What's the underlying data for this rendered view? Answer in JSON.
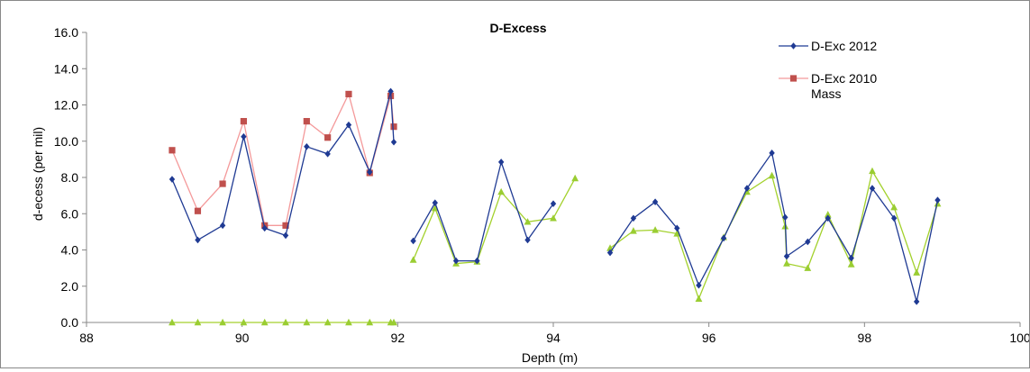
{
  "chart_data": {
    "type": "line",
    "title": "D-Excess",
    "xlabel": "Depth (m)",
    "ylabel": "d-ecess (per mil)",
    "xlim": [
      88,
      100
    ],
    "ylim": [
      0,
      16
    ],
    "x_ticks": [
      88,
      90,
      92,
      94,
      96,
      98,
      100
    ],
    "y_ticks": [
      "0.0",
      "2.0",
      "4.0",
      "6.0",
      "8.0",
      "10.0",
      "12.0",
      "14.0",
      "16.0"
    ],
    "grid": false,
    "legend_position": "top-right",
    "series": [
      {
        "name": "D-Exc 2012",
        "color": "#1f3a93",
        "marker": "diamond",
        "segments": [
          [
            [
              89.1,
              7.9
            ],
            [
              89.43,
              4.55
            ],
            [
              89.75,
              5.35
            ],
            [
              90.02,
              10.25
            ],
            [
              90.29,
              5.2
            ],
            [
              90.56,
              4.8
            ],
            [
              90.83,
              9.7
            ],
            [
              91.1,
              9.3
            ],
            [
              91.37,
              10.9
            ],
            [
              91.64,
              8.3
            ],
            [
              91.91,
              12.75
            ],
            [
              91.95,
              9.95
            ]
          ],
          [
            [
              92.2,
              4.5
            ],
            [
              92.48,
              6.6
            ],
            [
              92.75,
              3.4
            ],
            [
              93.02,
              3.4
            ],
            [
              93.33,
              8.85
            ],
            [
              93.67,
              4.55
            ],
            [
              94.0,
              6.55
            ]
          ],
          [
            [
              94.73,
              3.85
            ],
            [
              95.03,
              5.75
            ],
            [
              95.31,
              6.65
            ],
            [
              95.59,
              5.2
            ],
            [
              95.87,
              2.05
            ],
            [
              96.19,
              4.65
            ],
            [
              96.49,
              7.4
            ],
            [
              96.81,
              9.35
            ],
            [
              96.98,
              5.8
            ],
            [
              97.0,
              3.65
            ],
            [
              97.27,
              4.45
            ],
            [
              97.53,
              5.75
            ],
            [
              97.83,
              3.55
            ],
            [
              98.1,
              7.4
            ],
            [
              98.38,
              5.75
            ],
            [
              98.67,
              1.15
            ],
            [
              98.94,
              6.75
            ]
          ]
        ]
      },
      {
        "name": "D-Exc 2010 Mass",
        "color": "#c0504d",
        "line_color": "#f4999a",
        "marker": "square",
        "segments": [
          [
            [
              89.1,
              9.5
            ],
            [
              89.43,
              6.15
            ],
            [
              89.75,
              7.65
            ],
            [
              90.02,
              11.1
            ],
            [
              90.29,
              5.35
            ],
            [
              90.56,
              5.35
            ],
            [
              90.83,
              11.1
            ],
            [
              91.1,
              10.2
            ],
            [
              91.37,
              12.6
            ],
            [
              91.64,
              8.25
            ],
            [
              91.91,
              12.5
            ],
            [
              91.95,
              10.8
            ]
          ]
        ]
      },
      {
        "color": "#9acd32",
        "line_color": "#a3d12c",
        "marker": "triangle",
        "segments": [
          [
            [
              89.1,
              0
            ],
            [
              89.43,
              0
            ],
            [
              89.75,
              0
            ],
            [
              90.02,
              0
            ],
            [
              90.29,
              0
            ],
            [
              90.56,
              0
            ],
            [
              90.83,
              0
            ],
            [
              91.1,
              0
            ],
            [
              91.37,
              0
            ],
            [
              91.64,
              0
            ],
            [
              91.91,
              0
            ],
            [
              91.95,
              0
            ]
          ],
          [
            [
              92.2,
              3.45
            ],
            [
              92.48,
              6.3
            ],
            [
              92.75,
              3.25
            ],
            [
              93.02,
              3.35
            ],
            [
              93.33,
              7.2
            ],
            [
              93.67,
              5.55
            ],
            [
              94.0,
              5.75
            ],
            [
              94.28,
              7.95
            ]
          ],
          [
            [
              94.73,
              4.1
            ],
            [
              95.03,
              5.05
            ],
            [
              95.31,
              5.1
            ],
            [
              95.59,
              4.9
            ],
            [
              95.87,
              1.3
            ],
            [
              96.19,
              4.7
            ],
            [
              96.49,
              7.2
            ],
            [
              96.81,
              8.1
            ],
            [
              96.98,
              5.3
            ],
            [
              97.0,
              3.25
            ],
            [
              97.27,
              3.0
            ],
            [
              97.53,
              5.95
            ],
            [
              97.83,
              3.2
            ],
            [
              98.1,
              8.35
            ],
            [
              98.38,
              6.35
            ],
            [
              98.67,
              2.75
            ],
            [
              98.94,
              6.55
            ]
          ]
        ]
      }
    ]
  }
}
